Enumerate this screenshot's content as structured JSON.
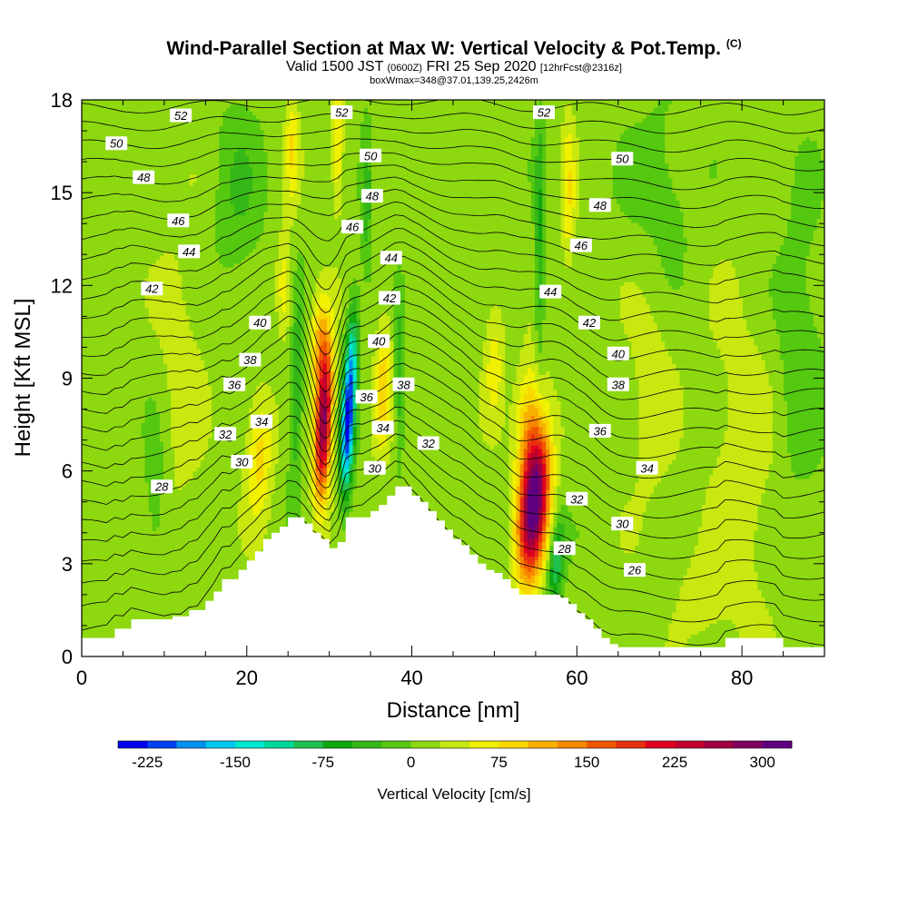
{
  "title": {
    "main": "Wind-Parallel Section at Max W: Vertical Velocity & Pot.Temp.",
    "copyright": "(C)",
    "valid_prefix": "Valid 1500 JST",
    "valid_utc": "(0600Z)",
    "valid_date": "FRI 25 Sep 2020",
    "forecast": "[12hrFcst@2316z]",
    "box": "boxWmax=348@37.01,139.25,2426m"
  },
  "chart_data": {
    "type": "heatmap",
    "xlabel": "Distance [nm]",
    "ylabel": "Height [Kft MSL]",
    "xlim": [
      0,
      90
    ],
    "ylim": [
      0,
      18
    ],
    "xticks": [
      "0",
      "20",
      "40",
      "60",
      "80"
    ],
    "yticks": [
      "0",
      "3",
      "6",
      "9",
      "12",
      "15",
      "18"
    ],
    "colorbar": {
      "title": "Vertical Velocity [cm/s]",
      "labels": [
        "-225",
        "-150",
        "-75",
        "0",
        "75",
        "150",
        "225",
        "300"
      ],
      "min": -250,
      "max": 325,
      "step": 25,
      "colors": [
        "#0000ee",
        "#0040ee",
        "#0090f0",
        "#00c8f0",
        "#00e8d0",
        "#00d898",
        "#20c050",
        "#10a810",
        "#34b818",
        "#55c810",
        "#8ed810",
        "#c8e810",
        "#f0f000",
        "#f8d800",
        "#f8b000",
        "#f88800",
        "#f05800",
        "#e83010",
        "#e00020",
        "#c0002c",
        "#a00040",
        "#800060",
        "#600080"
      ]
    },
    "terrain_profile": [
      [
        0,
        0.6
      ],
      [
        1,
        0.6
      ],
      [
        2,
        0.6
      ],
      [
        3,
        0.6
      ],
      [
        4,
        0.9
      ],
      [
        5,
        0.9
      ],
      [
        6,
        1.2
      ],
      [
        7,
        1.2
      ],
      [
        8,
        1.2
      ],
      [
        9,
        1.2
      ],
      [
        10,
        1.2
      ],
      [
        11,
        1.3
      ],
      [
        12,
        1.3
      ],
      [
        13,
        1.5
      ],
      [
        14,
        1.5
      ],
      [
        15,
        1.8
      ],
      [
        16,
        2.1
      ],
      [
        17,
        2.5
      ],
      [
        18,
        2.5
      ],
      [
        19,
        2.8
      ],
      [
        20,
        3.1
      ],
      [
        21,
        3.4
      ],
      [
        22,
        3.8
      ],
      [
        23,
        4.0
      ],
      [
        24,
        4.2
      ],
      [
        25,
        4.5
      ],
      [
        26,
        4.5
      ],
      [
        27,
        4.3
      ],
      [
        28,
        4.0
      ],
      [
        29,
        3.8
      ],
      [
        30,
        3.5
      ],
      [
        31,
        3.7
      ],
      [
        32,
        4.5
      ],
      [
        33,
        4.5
      ],
      [
        34,
        4.5
      ],
      [
        35,
        4.7
      ],
      [
        36,
        4.9
      ],
      [
        37,
        5.2
      ],
      [
        38,
        5.5
      ],
      [
        39,
        5.5
      ],
      [
        40,
        5.2
      ],
      [
        41,
        5.0
      ],
      [
        42,
        4.7
      ],
      [
        43,
        4.4
      ],
      [
        44,
        4.1
      ],
      [
        45,
        3.8
      ],
      [
        46,
        3.6
      ],
      [
        47,
        3.3
      ],
      [
        48,
        3.0
      ],
      [
        49,
        2.8
      ],
      [
        50,
        2.7
      ],
      [
        51,
        2.5
      ],
      [
        52,
        2.2
      ],
      [
        53,
        2.0
      ],
      [
        54,
        2.0
      ],
      [
        55,
        2.0
      ],
      [
        56,
        2.0
      ],
      [
        57,
        2.0
      ],
      [
        58,
        1.9
      ],
      [
        59,
        1.7
      ],
      [
        60,
        1.4
      ],
      [
        61,
        1.2
      ],
      [
        62,
        0.9
      ],
      [
        63,
        0.6
      ],
      [
        64,
        0.4
      ],
      [
        65,
        0.3
      ],
      [
        66,
        0.3
      ],
      [
        67,
        0.3
      ],
      [
        68,
        0.3
      ],
      [
        69,
        0.3
      ],
      [
        70,
        0.3
      ],
      [
        71,
        0.3
      ],
      [
        72,
        0.3
      ],
      [
        73,
        0.3
      ],
      [
        74,
        0.3
      ],
      [
        75,
        0.3
      ],
      [
        76,
        0.3
      ],
      [
        77,
        0.3
      ],
      [
        78,
        0.6
      ],
      [
        79,
        0.6
      ],
      [
        80,
        0.6
      ],
      [
        81,
        0.6
      ],
      [
        82,
        0.6
      ],
      [
        83,
        0.6
      ],
      [
        84,
        0.6
      ],
      [
        85,
        0.3
      ],
      [
        86,
        0.3
      ],
      [
        87,
        0.3
      ],
      [
        88,
        0.3
      ],
      [
        89,
        0.3
      ],
      [
        90,
        0.3
      ]
    ],
    "w_features": [
      {
        "x": 29.3,
        "y": 7.6,
        "sx": 1.0,
        "sy": 2.4,
        "tilt": 0.15,
        "amp": 275
      },
      {
        "x": 28.8,
        "y": 10.2,
        "sx": 1.1,
        "sy": 1.5,
        "tilt": 0.1,
        "amp": 80
      },
      {
        "x": 32.2,
        "y": 7.4,
        "sx": 0.8,
        "sy": 2.2,
        "tilt": 0.12,
        "amp": -230
      },
      {
        "x": 32.8,
        "y": 9.8,
        "sx": 0.7,
        "sy": 1.8,
        "tilt": 0.1,
        "amp": -110
      },
      {
        "x": 36.5,
        "y": 8.8,
        "sx": 1.0,
        "sy": 2.2,
        "tilt": 0.1,
        "amp": 75
      },
      {
        "x": 38.5,
        "y": 9.0,
        "sx": 0.6,
        "sy": 2.5,
        "tilt": 0.0,
        "amp": -60
      },
      {
        "x": 26.0,
        "y": 8.5,
        "sx": 0.8,
        "sy": 3.0,
        "tilt": 0.1,
        "amp": -70
      },
      {
        "x": 21.5,
        "y": 6.5,
        "sx": 1.6,
        "sy": 2.0,
        "tilt": 0.1,
        "amp": 75
      },
      {
        "x": 24.5,
        "y": 12.0,
        "sx": 0.9,
        "sy": 1.6,
        "tilt": 0.0,
        "amp": 60
      },
      {
        "x": 25.5,
        "y": 16.5,
        "sx": 0.8,
        "sy": 1.8,
        "tilt": 0.0,
        "amp": 60
      },
      {
        "x": 31.0,
        "y": 16.5,
        "sx": 0.7,
        "sy": 2.0,
        "tilt": 0.0,
        "amp": 70
      },
      {
        "x": 34.5,
        "y": 15.0,
        "sx": 0.7,
        "sy": 2.2,
        "tilt": 0.0,
        "amp": -60
      },
      {
        "x": 54.8,
        "y": 5.0,
        "sx": 1.7,
        "sy": 2.3,
        "tilt": 0.25,
        "amp": 330
      },
      {
        "x": 54.0,
        "y": 7.8,
        "sx": 1.6,
        "sy": 1.8,
        "tilt": 0.2,
        "amp": 80
      },
      {
        "x": 57.5,
        "y": 3.0,
        "sx": 0.9,
        "sy": 1.3,
        "tilt": 0.3,
        "amp": -110
      },
      {
        "x": 55.5,
        "y": 13.5,
        "sx": 0.6,
        "sy": 4.0,
        "tilt": 0.0,
        "amp": -65
      },
      {
        "x": 59.0,
        "y": 15.0,
        "sx": 0.8,
        "sy": 2.5,
        "tilt": 0.0,
        "amp": 60
      },
      {
        "x": 50.0,
        "y": 9.5,
        "sx": 1.2,
        "sy": 2.0,
        "tilt": 0.0,
        "amp": 50
      },
      {
        "x": 12.0,
        "y": 9.0,
        "sx": 3.0,
        "sy": 5.0,
        "tilt": 0.0,
        "amp": 25
      },
      {
        "x": 9.0,
        "y": 5.0,
        "sx": 1.5,
        "sy": 3.0,
        "tilt": 0.0,
        "amp": -30
      },
      {
        "x": 19.0,
        "y": 15.0,
        "sx": 3.0,
        "sy": 3.0,
        "tilt": 0.0,
        "amp": -35
      },
      {
        "x": 69.0,
        "y": 9.0,
        "sx": 3.0,
        "sy": 5.0,
        "tilt": 0.0,
        "amp": 25
      },
      {
        "x": 80.0,
        "y": 6.0,
        "sx": 4.0,
        "sy": 6.0,
        "tilt": 0.0,
        "amp": 30
      },
      {
        "x": 87.0,
        "y": 10.0,
        "sx": 3.0,
        "sy": 5.0,
        "tilt": 0.0,
        "amp": -30
      },
      {
        "x": 70.0,
        "y": 15.0,
        "sx": 4.0,
        "sy": 3.0,
        "tilt": 0.0,
        "amp": -30
      },
      {
        "x": 75.0,
        "y": 2.0,
        "sx": 3.0,
        "sy": 1.5,
        "tilt": 0.0,
        "amp": 25
      }
    ],
    "pot_temp_contours": {
      "interval": 1,
      "bottom": 25.5,
      "top": 53.5,
      "cold_dome_x": 29.3,
      "cold_dome_width": 2.0,
      "cold_dome_depth": 2.0
    },
    "contour_labels": [
      {
        "text": "52",
        "x": 12.0,
        "y": 17.5
      },
      {
        "text": "50",
        "x": 4.2,
        "y": 16.6
      },
      {
        "text": "48",
        "x": 7.5,
        "y": 15.5
      },
      {
        "text": "46",
        "x": 11.7,
        "y": 14.1
      },
      {
        "text": "44",
        "x": 13.0,
        "y": 13.1
      },
      {
        "text": "42",
        "x": 8.5,
        "y": 11.9
      },
      {
        "text": "40",
        "x": 21.6,
        "y": 10.8
      },
      {
        "text": "38",
        "x": 20.4,
        "y": 9.6
      },
      {
        "text": "36",
        "x": 18.5,
        "y": 8.8
      },
      {
        "text": "34",
        "x": 21.8,
        "y": 7.6
      },
      {
        "text": "32",
        "x": 17.4,
        "y": 7.2
      },
      {
        "text": "30",
        "x": 19.4,
        "y": 6.3
      },
      {
        "text": "28",
        "x": 9.7,
        "y": 5.5
      },
      {
        "text": "52",
        "x": 31.5,
        "y": 17.6
      },
      {
        "text": "50",
        "x": 35.0,
        "y": 16.2
      },
      {
        "text": "48",
        "x": 35.2,
        "y": 14.9
      },
      {
        "text": "46",
        "x": 32.8,
        "y": 13.9
      },
      {
        "text": "44",
        "x": 37.5,
        "y": 12.9
      },
      {
        "text": "42",
        "x": 37.3,
        "y": 11.6
      },
      {
        "text": "40",
        "x": 36.0,
        "y": 10.2
      },
      {
        "text": "38",
        "x": 39.0,
        "y": 8.8
      },
      {
        "text": "36",
        "x": 34.5,
        "y": 8.4
      },
      {
        "text": "34",
        "x": 36.5,
        "y": 7.4
      },
      {
        "text": "32",
        "x": 42.0,
        "y": 6.9
      },
      {
        "text": "30",
        "x": 35.5,
        "y": 6.1
      },
      {
        "text": "52",
        "x": 56.0,
        "y": 17.6
      },
      {
        "text": "50",
        "x": 65.5,
        "y": 16.1
      },
      {
        "text": "48",
        "x": 62.8,
        "y": 14.6
      },
      {
        "text": "46",
        "x": 60.5,
        "y": 13.3
      },
      {
        "text": "44",
        "x": 56.8,
        "y": 11.8
      },
      {
        "text": "42",
        "x": 61.5,
        "y": 10.8
      },
      {
        "text": "40",
        "x": 65.0,
        "y": 9.8
      },
      {
        "text": "38",
        "x": 65.0,
        "y": 8.8
      },
      {
        "text": "36",
        "x": 62.8,
        "y": 7.3
      },
      {
        "text": "34",
        "x": 68.5,
        "y": 6.1
      },
      {
        "text": "32",
        "x": 60.0,
        "y": 5.1
      },
      {
        "text": "30",
        "x": 65.5,
        "y": 4.3
      },
      {
        "text": "28",
        "x": 58.5,
        "y": 3.5
      },
      {
        "text": "26",
        "x": 67.0,
        "y": 2.8
      }
    ]
  }
}
